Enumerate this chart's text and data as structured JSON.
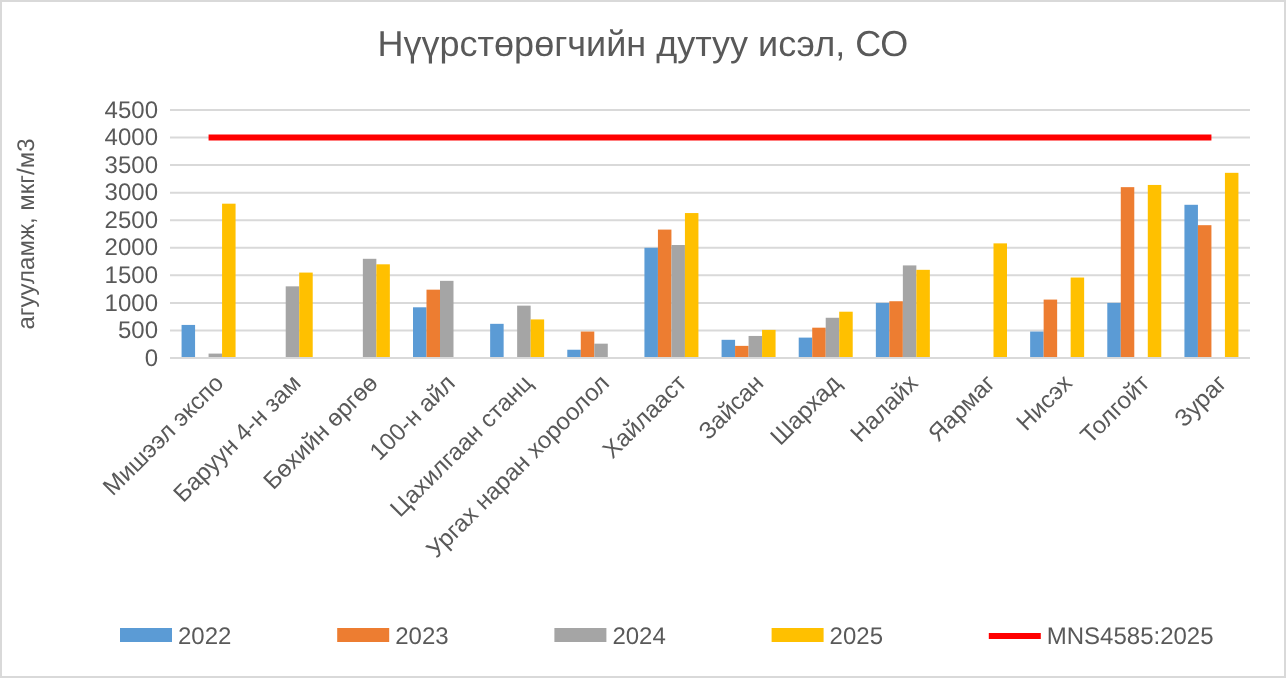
{
  "chart_data": {
    "type": "bar",
    "title": "Нүүрстөрөгчийн дутуу исэл, СО",
    "ylabel": "агууламж, мкг/м3",
    "categories": [
      "Мишээл экспо",
      "Баруун 4-н зам",
      "Бөхийн өргөө",
      "100-н айл",
      "Цахилгаан станц",
      "Ургах наран хороолол",
      "Хайлааст",
      "Зайсан",
      "Шархад",
      "Налайх",
      "Яармаг",
      "Нисэх",
      "Толгойт",
      "Зураг"
    ],
    "series": [
      {
        "name": "2022",
        "color": "#5b9bd5",
        "values": [
          600,
          null,
          null,
          920,
          620,
          150,
          2000,
          330,
          370,
          1000,
          null,
          480,
          1000,
          2780
        ]
      },
      {
        "name": "2023",
        "color": "#ed7d31",
        "values": [
          null,
          null,
          null,
          1240,
          null,
          480,
          2330,
          220,
          550,
          1030,
          null,
          1060,
          3100,
          2410
        ]
      },
      {
        "name": "2024",
        "color": "#a5a5a5",
        "values": [
          80,
          1300,
          1800,
          1400,
          950,
          260,
          2050,
          400,
          730,
          1680,
          null,
          null,
          null,
          null
        ]
      },
      {
        "name": "2025",
        "color": "#ffc000",
        "values": [
          2800,
          1550,
          1700,
          null,
          700,
          null,
          2630,
          510,
          840,
          1600,
          2080,
          1460,
          3140,
          3360
        ]
      },
      {
        "type": "line",
        "name": "MNS4585:2025",
        "color": "#ff0000",
        "values": [
          4000,
          4000,
          4000,
          4000,
          4000,
          4000,
          4000,
          4000,
          4000,
          4000,
          4000,
          4000,
          4000,
          4000
        ]
      }
    ],
    "ylim": [
      0,
      4500
    ],
    "yticks": [
      0,
      500,
      1000,
      1500,
      2000,
      2500,
      3000,
      3500,
      4000,
      4500
    ],
    "grid": "y",
    "legend": "bottom"
  }
}
